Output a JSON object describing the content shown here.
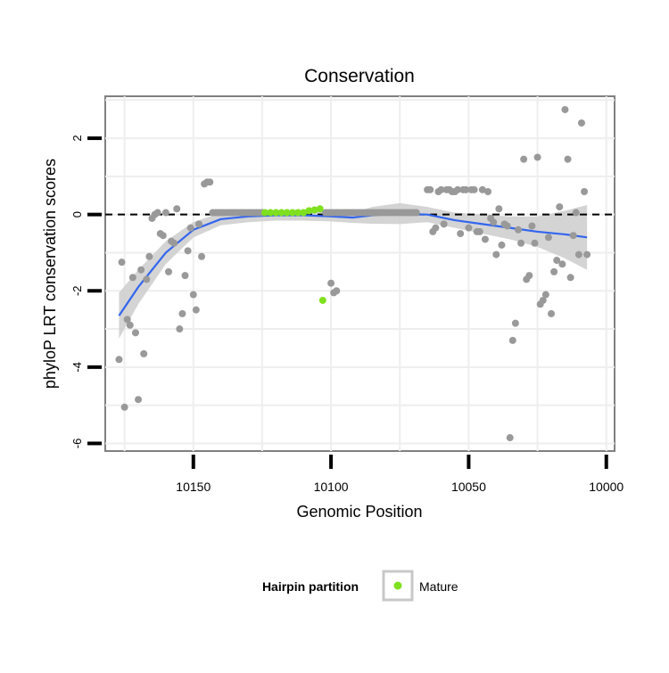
{
  "chart_data": {
    "type": "scatter",
    "title": "Conservation",
    "xlabel": "Genomic Position",
    "ylabel": "phyloP LRT conservation scores",
    "x_reversed": true,
    "xlim": [
      9997,
      10182
    ],
    "ylim": [
      -6.2,
      3.1
    ],
    "x_ticks": [
      10150,
      10100,
      10050,
      10000
    ],
    "y_ticks": [
      2,
      0,
      -2,
      -4,
      -6
    ],
    "x_tick_labels": [
      "10150",
      "10100",
      "10050",
      "10000"
    ],
    "y_tick_labels": [
      "2",
      "0",
      "-2",
      "-4",
      "-6"
    ],
    "grid": true,
    "reference_line": {
      "y": 0,
      "style": "dashed"
    },
    "legend": {
      "title": "Hairpin partition",
      "placement": "bottom",
      "entries": [
        {
          "label": "Mature",
          "color": "#7fe01f"
        }
      ]
    },
    "colors": {
      "points": "#999999",
      "mature": "#7fe01f",
      "smooth_line": "#3366ee",
      "ribbon": "#cccccc",
      "panel_border": "#808080",
      "grid": "#eeeeee"
    },
    "series": [
      {
        "kind": "points",
        "points": [
          [
            10177,
            -3.8
          ],
          [
            10176,
            -1.25
          ],
          [
            10175,
            -5.05
          ],
          [
            10174,
            -2.75
          ],
          [
            10173,
            -2.9
          ],
          [
            10172,
            -1.65
          ],
          [
            10171,
            -3.1
          ],
          [
            10170,
            -4.85
          ],
          [
            10169,
            -1.45
          ],
          [
            10168,
            -3.65
          ],
          [
            10167,
            -1.7
          ],
          [
            10166,
            -1.1
          ],
          [
            10165,
            -0.1
          ],
          [
            10164,
            0.0
          ],
          [
            10163,
            0.05
          ],
          [
            10162,
            -0.5
          ],
          [
            10161,
            -0.55
          ],
          [
            10160,
            0.05
          ],
          [
            10159,
            -1.5
          ],
          [
            10158,
            -0.7
          ],
          [
            10157,
            -0.75
          ],
          [
            10156,
            0.15
          ],
          [
            10155,
            -3.0
          ],
          [
            10154,
            -2.6
          ],
          [
            10153,
            -1.6
          ],
          [
            10152,
            -0.95
          ],
          [
            10151,
            -0.35
          ],
          [
            10150,
            -2.1
          ],
          [
            10149,
            -2.5
          ],
          [
            10148,
            -0.25
          ],
          [
            10147,
            -1.1
          ],
          [
            10146,
            0.8
          ],
          [
            10145,
            0.85
          ],
          [
            10144,
            0.85
          ],
          [
            10143,
            0.05
          ],
          [
            10142,
            0.05
          ],
          [
            10141,
            0.05
          ],
          [
            10140,
            0.05
          ],
          [
            10139,
            0.05
          ],
          [
            10138,
            0.05
          ],
          [
            10137,
            0.05
          ],
          [
            10136,
            0.05
          ],
          [
            10135,
            0.05
          ],
          [
            10134,
            0.05
          ],
          [
            10133,
            0.05
          ],
          [
            10132,
            0.05
          ],
          [
            10131,
            0.05
          ],
          [
            10130,
            0.05
          ],
          [
            10129,
            0.05
          ],
          [
            10128,
            0.05
          ],
          [
            10127,
            0.05
          ],
          [
            10126,
            0.05
          ],
          [
            10125,
            0.05
          ],
          [
            10102,
            0.05
          ],
          [
            10101,
            0.05
          ],
          [
            10100,
            0.05
          ],
          [
            10099,
            0.05
          ],
          [
            10098,
            0.05
          ],
          [
            10097,
            0.05
          ],
          [
            10096,
            0.05
          ],
          [
            10095,
            0.05
          ],
          [
            10094,
            0.05
          ],
          [
            10093,
            0.05
          ],
          [
            10092,
            0.05
          ],
          [
            10091,
            0.05
          ],
          [
            10090,
            0.05
          ],
          [
            10089,
            0.05
          ],
          [
            10088,
            0.05
          ],
          [
            10087,
            0.05
          ],
          [
            10086,
            0.05
          ],
          [
            10085,
            0.05
          ],
          [
            10084,
            0.05
          ],
          [
            10083,
            0.05
          ],
          [
            10082,
            0.05
          ],
          [
            10081,
            0.05
          ],
          [
            10080,
            0.05
          ],
          [
            10079,
            0.05
          ],
          [
            10078,
            0.05
          ],
          [
            10077,
            0.05
          ],
          [
            10076,
            0.05
          ],
          [
            10075,
            0.05
          ],
          [
            10074,
            0.05
          ],
          [
            10073,
            0.05
          ],
          [
            10072,
            0.05
          ],
          [
            10071,
            0.05
          ],
          [
            10070,
            0.05
          ],
          [
            10069,
            0.05
          ],
          [
            10100,
            -1.8
          ],
          [
            10099,
            -2.05
          ],
          [
            10098,
            -2.0
          ],
          [
            10065,
            0.65
          ],
          [
            10064,
            0.65
          ],
          [
            10063,
            -0.45
          ],
          [
            10062,
            -0.35
          ],
          [
            10061,
            0.6
          ],
          [
            10060,
            0.65
          ],
          [
            10059,
            -0.25
          ],
          [
            10058,
            0.65
          ],
          [
            10057,
            0.65
          ],
          [
            10056,
            0.6
          ],
          [
            10055,
            0.6
          ],
          [
            10054,
            0.65
          ],
          [
            10053,
            -0.5
          ],
          [
            10052,
            0.65
          ],
          [
            10051,
            0.65
          ],
          [
            10050,
            -0.35
          ],
          [
            10049,
            0.65
          ],
          [
            10048,
            0.65
          ],
          [
            10047,
            -0.45
          ],
          [
            10046,
            -0.45
          ],
          [
            10045,
            0.65
          ],
          [
            10044,
            -0.65
          ],
          [
            10043,
            0.6
          ],
          [
            10042,
            -0.1
          ],
          [
            10041,
            -0.2
          ],
          [
            10040,
            -1.05
          ],
          [
            10039,
            0.15
          ],
          [
            10038,
            -0.8
          ],
          [
            10037,
            -0.25
          ],
          [
            10036,
            -0.3
          ],
          [
            10035,
            -5.85
          ],
          [
            10034,
            -3.3
          ],
          [
            10033,
            -2.85
          ],
          [
            10032,
            -0.4
          ],
          [
            10031,
            -0.75
          ],
          [
            10030,
            1.45
          ],
          [
            10029,
            -1.7
          ],
          [
            10028,
            -1.6
          ],
          [
            10027,
            -0.3
          ],
          [
            10026,
            -0.75
          ],
          [
            10025,
            1.5
          ],
          [
            10024,
            -2.35
          ],
          [
            10023,
            -2.25
          ],
          [
            10022,
            -2.1
          ],
          [
            10021,
            -0.6
          ],
          [
            10020,
            -2.6
          ],
          [
            10019,
            -1.5
          ],
          [
            10018,
            -1.2
          ],
          [
            10017,
            0.2
          ],
          [
            10016,
            -1.3
          ],
          [
            10015,
            2.75
          ],
          [
            10014,
            1.45
          ],
          [
            10013,
            -1.65
          ],
          [
            10012,
            -0.55
          ],
          [
            10011,
            0.05
          ],
          [
            10010,
            -1.05
          ],
          [
            10009,
            2.4
          ],
          [
            10008,
            0.6
          ],
          [
            10007,
            -1.05
          ]
        ]
      },
      {
        "kind": "points",
        "name": "Mature",
        "points": [
          [
            10124,
            0.05
          ],
          [
            10122,
            0.05
          ],
          [
            10120,
            0.05
          ],
          [
            10118,
            0.05
          ],
          [
            10116,
            0.05
          ],
          [
            10114,
            0.05
          ],
          [
            10112,
            0.05
          ],
          [
            10110,
            0.05
          ],
          [
            10108,
            0.1
          ],
          [
            10106,
            0.12
          ],
          [
            10104,
            0.15
          ],
          [
            10103,
            -2.25
          ]
        ]
      },
      {
        "kind": "smooth",
        "points": [
          [
            10177,
            -2.65
          ],
          [
            10170,
            -1.9
          ],
          [
            10160,
            -1.0
          ],
          [
            10150,
            -0.4
          ],
          [
            10140,
            -0.12
          ],
          [
            10130,
            -0.05
          ],
          [
            10120,
            -0.02
          ],
          [
            10110,
            -0.02
          ],
          [
            10100,
            -0.05
          ],
          [
            10092,
            -0.08
          ],
          [
            10085,
            -0.02
          ],
          [
            10075,
            0.02
          ],
          [
            10065,
            0.0
          ],
          [
            10055,
            -0.15
          ],
          [
            10045,
            -0.25
          ],
          [
            10035,
            -0.35
          ],
          [
            10025,
            -0.45
          ],
          [
            10015,
            -0.52
          ],
          [
            10007,
            -0.6
          ]
        ],
        "ribbon_upper": [
          [
            10177,
            -2.05
          ],
          [
            10170,
            -1.45
          ],
          [
            10160,
            -0.7
          ],
          [
            10150,
            -0.2
          ],
          [
            10140,
            0.05
          ],
          [
            10130,
            0.1
          ],
          [
            10120,
            0.12
          ],
          [
            10110,
            0.12
          ],
          [
            10100,
            0.08
          ],
          [
            10092,
            0.05
          ],
          [
            10085,
            0.2
          ],
          [
            10075,
            0.3
          ],
          [
            10065,
            0.2
          ],
          [
            10055,
            0.05
          ],
          [
            10045,
            0.0
          ],
          [
            10035,
            -0.05
          ],
          [
            10025,
            -0.05
          ],
          [
            10015,
            0.1
          ],
          [
            10007,
            0.25
          ]
        ],
        "ribbon_lower": [
          [
            10177,
            -3.25
          ],
          [
            10170,
            -2.35
          ],
          [
            10160,
            -1.3
          ],
          [
            10150,
            -0.6
          ],
          [
            10140,
            -0.28
          ],
          [
            10130,
            -0.2
          ],
          [
            10120,
            -0.16
          ],
          [
            10110,
            -0.16
          ],
          [
            10100,
            -0.18
          ],
          [
            10092,
            -0.22
          ],
          [
            10085,
            -0.24
          ],
          [
            10075,
            -0.25
          ],
          [
            10065,
            -0.2
          ],
          [
            10055,
            -0.35
          ],
          [
            10045,
            -0.5
          ],
          [
            10035,
            -0.65
          ],
          [
            10025,
            -0.85
          ],
          [
            10015,
            -1.15
          ],
          [
            10007,
            -1.45
          ]
        ]
      }
    ]
  }
}
